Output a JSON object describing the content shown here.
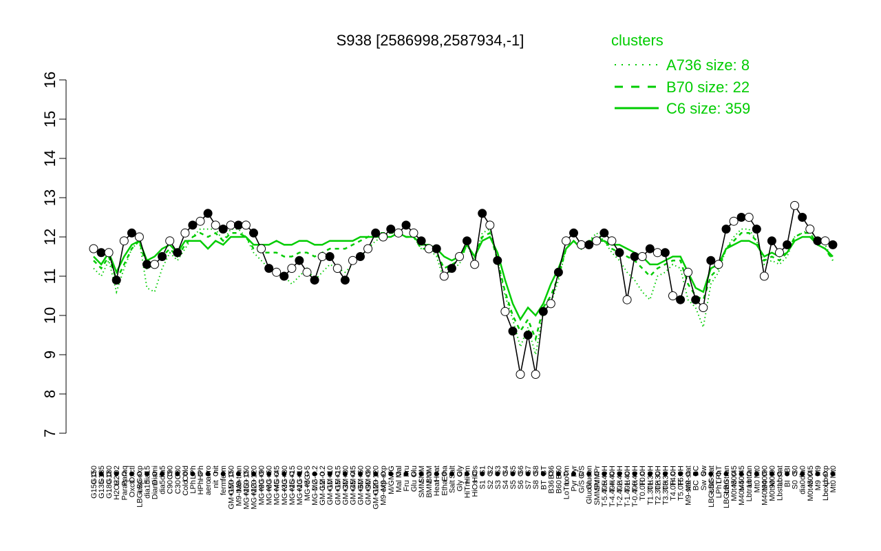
{
  "chart_data": {
    "type": "line",
    "title": "S938 [2586998,2587934,-1]",
    "ylim": [
      7,
      16
    ],
    "yticks": [
      7,
      8,
      9,
      10,
      11,
      12,
      13,
      14,
      15,
      16
    ],
    "grid": false,
    "legend": {
      "placement": "top-right",
      "title": "clusters",
      "color": "#00cc00",
      "entries": [
        {
          "label": "A736 size: 8",
          "style": "dotted"
        },
        {
          "label": "B70 size: 22",
          "style": "dashed"
        },
        {
          "label": "C6 size: 359",
          "style": "solid"
        }
      ]
    },
    "xtick_labels": [
      "G150",
      "G135",
      "G180",
      "H2O2",
      "Paraq",
      "Oxctl",
      "LBGexp",
      "dia15",
      "Diami",
      "dia5",
      "C90",
      "C30",
      "Cold",
      "LPh",
      "HPh",
      "aero",
      "nit",
      "ferm",
      "GM+150",
      "M9-tran",
      "MG+150",
      "MG+120",
      "MG+90",
      "MG+60",
      "MG+45",
      "MG+30",
      "MG+15",
      "MG+10",
      "MG+5",
      "MG-0.2",
      "GM-0.2",
      "GM+10",
      "GM+15",
      "GM+30",
      "GM+45",
      "GM+60",
      "GM+90",
      "GM+120",
      "M9-exp",
      "M/G",
      "Mal",
      "Fru",
      "Glu",
      "SMM",
      "BMM",
      "Heat",
      "Etha",
      "Salt",
      "Gly",
      "HiTm",
      "HiOs",
      "S1",
      "S2",
      "S3",
      "S4",
      "S5",
      "S6",
      "S7",
      "S8",
      "BT",
      "B36",
      "B60",
      "LoTm",
      "Pyr",
      "G/S",
      "Glucon",
      "SMMPr",
      "T-5.40H",
      "T-4.40H",
      "T-2.40H",
      "T-1.40H",
      "T-0.40H",
      "T0.0H",
      "T1.30H",
      "T2.30H",
      "T3.30H",
      "T4.0H",
      "T5.0H",
      "M9-stat",
      "BC",
      "Sw",
      "LBGstat",
      "LPhT",
      "LBGtran",
      "M0t45",
      "M40t45",
      "Lbtran",
      "Mt0",
      "M40t90",
      "M0t90",
      "Lbstat",
      "BI",
      "S0",
      "dia0",
      "M0t45",
      "M9",
      "Lbexp",
      "Mt0"
    ],
    "series": [
      {
        "style": "solid",
        "color": "#00cc00",
        "values": [
          11.5,
          11.3,
          11.6,
          11.1,
          11.5,
          11.8,
          11.9,
          11.4,
          11.5,
          11.7,
          11.8,
          11.6,
          11.9,
          11.9,
          11.9,
          11.7,
          11.9,
          11.8,
          12.0,
          12.0,
          12.0,
          11.8,
          11.8,
          11.8,
          11.9,
          11.8,
          11.8,
          11.9,
          11.9,
          11.8,
          11.8,
          11.9,
          11.9,
          11.9,
          11.9,
          12.0,
          12.0,
          12.0,
          12.0,
          12.0,
          12.1,
          12.0,
          12.0,
          11.8,
          11.8,
          11.7,
          11.5,
          11.4,
          11.5,
          11.8,
          11.5,
          11.9,
          12.0,
          11.6,
          10.9,
          10.3,
          9.9,
          10.2,
          10.0,
          10.3,
          10.8,
          11.2,
          11.7,
          11.9,
          11.7,
          11.9,
          11.9,
          11.9,
          11.8,
          11.8,
          11.7,
          11.6,
          11.5,
          11.3,
          11.3,
          11.4,
          11.5,
          11.5,
          11.1,
          10.7,
          10.6,
          11.2,
          11.3,
          11.7,
          11.8,
          11.9,
          11.9,
          11.8,
          11.5,
          11.6,
          11.5,
          11.6,
          11.9,
          12.0,
          12.0,
          11.8,
          11.7,
          11.5
        ]
      },
      {
        "style": "dashed",
        "color": "#00cc00",
        "values": [
          11.4,
          11.2,
          11.5,
          10.9,
          11.3,
          11.7,
          11.9,
          11.2,
          11.3,
          11.5,
          11.7,
          11.5,
          11.8,
          12.0,
          12.1,
          12.0,
          12.1,
          11.9,
          12.1,
          12.1,
          12.0,
          11.7,
          11.6,
          11.6,
          11.6,
          11.5,
          11.5,
          11.6,
          11.6,
          11.5,
          11.6,
          11.7,
          11.7,
          11.7,
          11.8,
          11.9,
          12.0,
          12.1,
          12.1,
          12.1,
          12.1,
          12.0,
          12.0,
          11.7,
          11.7,
          11.6,
          11.2,
          11.3,
          11.4,
          11.8,
          11.5,
          12.0,
          12.1,
          11.4,
          10.6,
          10.0,
          9.6,
          9.9,
          9.4,
          10.2,
          10.5,
          11.0,
          11.7,
          11.9,
          11.7,
          11.9,
          12.0,
          11.9,
          11.7,
          11.6,
          11.5,
          11.4,
          11.2,
          11.0,
          11.2,
          11.3,
          11.4,
          11.4,
          10.8,
          10.5,
          10.4,
          11.0,
          11.2,
          11.7,
          11.9,
          12.1,
          12.1,
          11.9,
          11.4,
          11.5,
          11.4,
          11.6,
          12.0,
          12.1,
          12.1,
          11.8,
          11.7,
          11.4
        ]
      },
      {
        "style": "dotted",
        "color": "#00cc00",
        "values": [
          11.2,
          11.0,
          11.4,
          10.6,
          11.2,
          11.7,
          11.9,
          10.7,
          10.6,
          11.2,
          11.6,
          11.4,
          11.7,
          12.0,
          12.2,
          12.2,
          12.2,
          11.9,
          12.2,
          12.2,
          12.0,
          11.6,
          11.4,
          11.2,
          11.1,
          11.0,
          10.8,
          11.0,
          11.2,
          10.9,
          11.1,
          11.3,
          11.2,
          11.1,
          11.3,
          11.5,
          11.7,
          11.9,
          12.0,
          12.1,
          12.1,
          12.0,
          12.0,
          11.7,
          11.7,
          11.5,
          10.9,
          11.2,
          11.3,
          11.8,
          11.4,
          12.1,
          12.2,
          11.4,
          10.5,
          9.9,
          9.2,
          9.7,
          9.0,
          10.1,
          10.3,
          10.9,
          11.7,
          11.9,
          11.7,
          11.9,
          12.1,
          11.9,
          11.6,
          11.4,
          11.1,
          10.9,
          10.6,
          10.4,
          11.0,
          11.1,
          11.3,
          11.2,
          10.4,
          10.2,
          9.7,
          10.8,
          11.1,
          11.7,
          12.0,
          12.2,
          12.2,
          11.9,
          11.3,
          11.4,
          11.3,
          11.5,
          12.0,
          12.1,
          12.2,
          11.9,
          11.8,
          11.4
        ]
      },
      {
        "style": "black-with-points",
        "color": "#000000",
        "values": [
          11.7,
          11.6,
          11.6,
          10.9,
          11.9,
          12.1,
          12.0,
          11.3,
          11.3,
          11.5,
          11.9,
          11.6,
          12.1,
          12.3,
          12.4,
          12.6,
          12.3,
          12.2,
          12.3,
          12.3,
          12.3,
          12.1,
          11.7,
          11.2,
          11.1,
          11.0,
          11.2,
          11.4,
          11.1,
          10.9,
          11.5,
          11.5,
          11.2,
          10.9,
          11.4,
          11.5,
          11.7,
          12.1,
          12.0,
          12.2,
          12.1,
          12.3,
          12.1,
          11.9,
          11.7,
          11.7,
          11.0,
          11.2,
          11.5,
          11.9,
          11.3,
          12.6,
          12.3,
          11.4,
          10.1,
          9.6,
          8.5,
          9.5,
          8.5,
          10.1,
          10.3,
          11.1,
          11.9,
          12.1,
          11.8,
          11.8,
          11.9,
          12.1,
          11.9,
          11.6,
          10.4,
          11.5,
          11.5,
          11.7,
          11.6,
          11.6,
          10.5,
          10.4,
          11.1,
          10.4,
          10.2,
          11.4,
          11.3,
          12.2,
          12.4,
          12.5,
          12.5,
          12.2,
          11.0,
          11.9,
          11.6,
          11.8,
          12.8,
          12.5,
          12.2,
          11.9,
          11.9,
          11.8
        ]
      }
    ]
  }
}
